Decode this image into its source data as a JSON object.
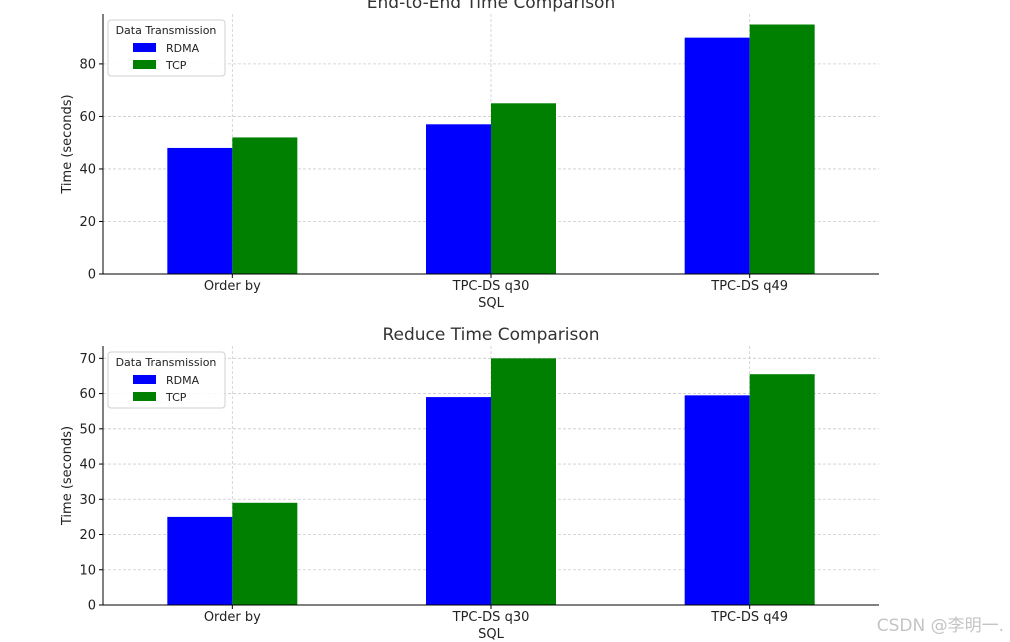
{
  "chart_data": [
    {
      "type": "bar",
      "title": "End-to-End Time Comparison",
      "xlabel": "SQL",
      "ylabel": "Time (seconds)",
      "categories": [
        "Order by",
        "TPC-DS q30",
        "TPC-DS q49"
      ],
      "series": [
        {
          "name": "RDMA",
          "values": [
            48,
            57,
            90
          ]
        },
        {
          "name": "TCP",
          "values": [
            52,
            65,
            95
          ]
        }
      ],
      "ylim": [
        0,
        99
      ],
      "yticks": [
        0,
        20,
        40,
        60,
        80
      ],
      "grid": true,
      "legend_title": "Data Transmission",
      "legend_position": "top-left"
    },
    {
      "type": "bar",
      "title": "Reduce Time Comparison",
      "xlabel": "SQL",
      "ylabel": "Time (seconds)",
      "categories": [
        "Order by",
        "TPC-DS q30",
        "TPC-DS q49"
      ],
      "series": [
        {
          "name": "RDMA",
          "values": [
            25,
            59,
            59.5
          ]
        },
        {
          "name": "TCP",
          "values": [
            29,
            70,
            65.5
          ]
        }
      ],
      "ylim": [
        0,
        73.5
      ],
      "yticks": [
        0,
        10,
        20,
        30,
        40,
        50,
        60,
        70
      ],
      "grid": true,
      "legend_title": "Data Transmission",
      "legend_position": "top-left"
    }
  ],
  "colors": {
    "RDMA": "#0000ff",
    "TCP": "#008000"
  },
  "watermark": "CSDN @李明一."
}
